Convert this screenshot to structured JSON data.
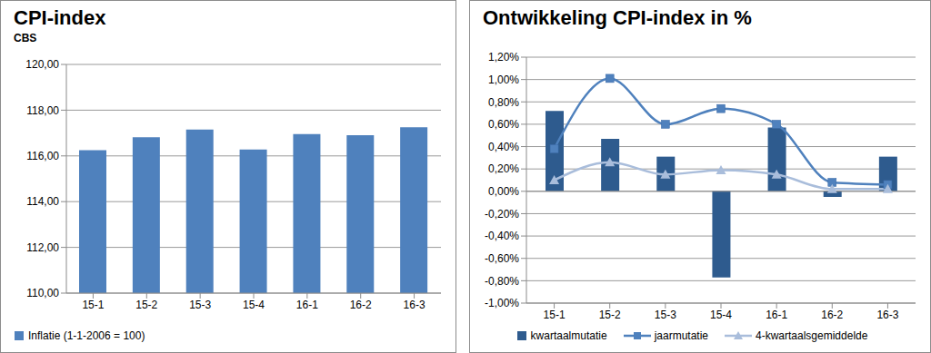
{
  "chart_data": [
    {
      "type": "bar",
      "title": "CPI-index",
      "subtitle": "CBS",
      "categories": [
        "15-1",
        "15-2",
        "15-3",
        "15-4",
        "16-1",
        "16-2",
        "16-3"
      ],
      "series": [
        {
          "name": "Inflatie (1-1-2006 = 100)",
          "color": "#4f81bd",
          "values": [
            116.25,
            116.82,
            117.15,
            116.28,
            116.95,
            116.9,
            117.25
          ]
        }
      ],
      "ylim": [
        110,
        120
      ],
      "yticks": [
        {
          "value": 110,
          "label": "110,00"
        },
        {
          "value": 112,
          "label": "112,00"
        },
        {
          "value": 114,
          "label": "114,00"
        },
        {
          "value": 116,
          "label": "116,00"
        },
        {
          "value": 118,
          "label": "118,00"
        },
        {
          "value": 120,
          "label": "120,00"
        }
      ],
      "grid": true,
      "legend": "bottom"
    },
    {
      "type": "combo",
      "title": "Ontwikkeling CPI-index in %",
      "categories": [
        "15-1",
        "15-2",
        "15-3",
        "15-4",
        "16-1",
        "16-2",
        "16-3"
      ],
      "series": [
        {
          "name": "kwartaalmutatie",
          "type": "bar",
          "color": "#2e5b8e",
          "values": [
            0.72,
            0.47,
            0.31,
            -0.77,
            0.57,
            -0.05,
            0.31
          ]
        },
        {
          "name": "jaarmutatie",
          "type": "line",
          "color": "#4f81bd",
          "marker": "square",
          "line_style": "solid",
          "values": [
            0.38,
            1.01,
            0.6,
            0.74,
            0.6,
            0.08,
            0.06
          ]
        },
        {
          "name": "4-kwartaalsgemiddelde",
          "type": "line",
          "color": "#a9bddb",
          "marker": "triangle",
          "line_style": "solid",
          "values": [
            0.1,
            0.26,
            0.15,
            0.19,
            0.15,
            0.02,
            0.02
          ]
        }
      ],
      "ylim": [
        -1,
        1.2
      ],
      "yticks": [
        {
          "value": -1,
          "label": "-1,00%"
        },
        {
          "value": -0.8,
          "label": "-0,80%"
        },
        {
          "value": -0.6,
          "label": "-0,60%"
        },
        {
          "value": -0.4,
          "label": "-0,40%"
        },
        {
          "value": -0.2,
          "label": "-0,20%"
        },
        {
          "value": 0,
          "label": "0,00%"
        },
        {
          "value": 0.2,
          "label": "0,20%"
        },
        {
          "value": 0.4,
          "label": "0,40%"
        },
        {
          "value": 0.6,
          "label": "0,60%"
        },
        {
          "value": 0.8,
          "label": "0,80%"
        },
        {
          "value": 1,
          "label": "1,00%"
        },
        {
          "value": 1.2,
          "label": "1,20%"
        }
      ],
      "grid": true,
      "legend": "bottom"
    }
  ]
}
